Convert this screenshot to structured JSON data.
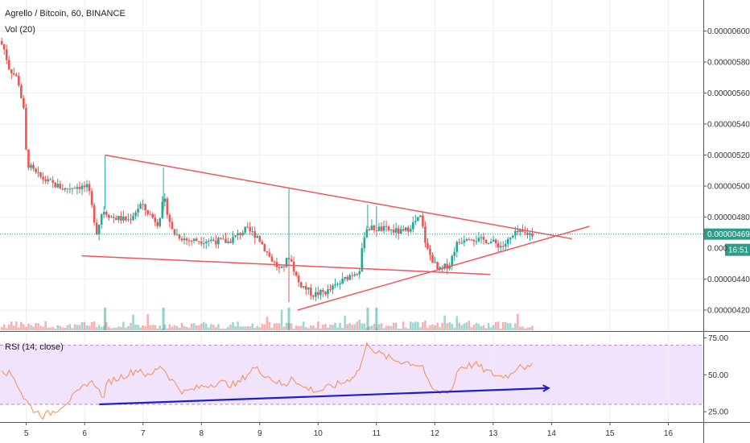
{
  "header": {
    "title": "Agrello / Bitcoin, 60, BINANCE",
    "volume_label": "Vol (20)",
    "rsi_label": "RSI (14, close)"
  },
  "price_axis": {
    "ticks": [
      {
        "value": 6e-06,
        "label": "0.00000600"
      },
      {
        "value": 5.8e-06,
        "label": "0.00000580"
      },
      {
        "value": 5.6e-06,
        "label": "0.00000560"
      },
      {
        "value": 5.4e-06,
        "label": "0.00000540"
      },
      {
        "value": 5.2e-06,
        "label": "0.00000520"
      },
      {
        "value": 5e-06,
        "label": "0.00000500"
      },
      {
        "value": 4.8e-06,
        "label": "0.00000480"
      },
      {
        "value": 4.4e-06,
        "label": "0.00000440"
      },
      {
        "value": 4.2e-06,
        "label": "0.00000420"
      }
    ],
    "partial_label": "0.000",
    "ylim": [
      4.07e-06,
      6.2e-06
    ],
    "current_price": {
      "value": 4.69e-06,
      "label": "0.00000469",
      "countdown": "16:51",
      "color": "#2e9c89"
    }
  },
  "rsi_axis": {
    "ticks": [
      {
        "value": 75,
        "label": "75.00"
      },
      {
        "value": 50,
        "label": "50.00"
      },
      {
        "value": 25,
        "label": "25.00"
      }
    ],
    "ylim": [
      18,
      78
    ],
    "band": [
      30,
      70
    ],
    "band_color": "#f1e3fb",
    "line_color": "#f58d54"
  },
  "time_axis": {
    "ticks": [
      {
        "value": 5,
        "label": "5"
      },
      {
        "value": 6,
        "label": "6"
      },
      {
        "value": 7,
        "label": "7"
      },
      {
        "value": 8,
        "label": "8"
      },
      {
        "value": 9,
        "label": "9"
      },
      {
        "value": 10,
        "label": "10"
      },
      {
        "value": 11,
        "label": "11"
      },
      {
        "value": 12,
        "label": "12"
      },
      {
        "value": 13,
        "label": "13"
      },
      {
        "value": 14,
        "label": "14"
      },
      {
        "value": 15,
        "label": "15"
      },
      {
        "value": 16,
        "label": "16"
      }
    ],
    "xlim": [
      4.55,
      16.6
    ]
  },
  "colors": {
    "up": "#26a69a",
    "down": "#ef5350",
    "trendline": "#f0555d",
    "rsi_trendline": "#1f1fc8",
    "grid": "#eeeeee"
  },
  "chart_data": {
    "type": "candlestick",
    "price_keypoints": [
      [
        4.55,
        5.95e-06
      ],
      [
        4.65,
        5.9e-06
      ],
      [
        4.75,
        5.76e-06
      ],
      [
        4.9,
        5.69e-06
      ],
      [
        5.0,
        5.48e-06
      ],
      [
        5.05,
        5.15e-06
      ],
      [
        5.2,
        5.08e-06
      ],
      [
        5.4,
        5.03e-06
      ],
      [
        5.7,
        4.98e-06
      ],
      [
        5.9,
        5e-06
      ],
      [
        6.1,
        4.99e-06
      ],
      [
        6.25,
        4.7e-06
      ],
      [
        6.35,
        4.85e-06
      ],
      [
        6.5,
        4.8e-06
      ],
      [
        6.8,
        4.78e-06
      ],
      [
        7.0,
        4.88e-06
      ],
      [
        7.3,
        4.76e-06
      ],
      [
        7.4,
        4.92e-06
      ],
      [
        7.55,
        4.7e-06
      ],
      [
        7.8,
        4.65e-06
      ],
      [
        8.2,
        4.65e-06
      ],
      [
        8.5,
        4.64e-06
      ],
      [
        8.8,
        4.72e-06
      ],
      [
        9.0,
        4.68e-06
      ],
      [
        9.2,
        4.55e-06
      ],
      [
        9.4,
        4.45e-06
      ],
      [
        9.55,
        4.55e-06
      ],
      [
        9.7,
        4.38e-06
      ],
      [
        9.95,
        4.3e-06
      ],
      [
        10.2,
        4.32e-06
      ],
      [
        10.4,
        4.37e-06
      ],
      [
        10.6,
        4.43e-06
      ],
      [
        10.75,
        4.46e-06
      ],
      [
        10.85,
        4.73e-06
      ],
      [
        11.2,
        4.72e-06
      ],
      [
        11.5,
        4.7e-06
      ],
      [
        11.8,
        4.8e-06
      ],
      [
        11.9,
        4.6e-06
      ],
      [
        12.1,
        4.45e-06
      ],
      [
        12.3,
        4.5e-06
      ],
      [
        12.4,
        4.62e-06
      ],
      [
        12.6,
        4.68e-06
      ],
      [
        12.8,
        4.65e-06
      ],
      [
        12.95,
        4.65e-06
      ],
      [
        13.2,
        4.61e-06
      ],
      [
        13.45,
        4.7e-06
      ],
      [
        13.7,
        4.69e-06
      ]
    ],
    "spikes": [
      {
        "x": 6.35,
        "high": 5.2e-06
      },
      {
        "x": 7.35,
        "high": 5.12e-06
      },
      {
        "x": 9.5,
        "high": 4.99e-06
      },
      {
        "x": 9.5,
        "low": 4.25e-06
      },
      {
        "x": 10.85,
        "high": 4.88e-06
      },
      {
        "x": 11.0,
        "high": 4.87e-06
      }
    ],
    "rsi_keypoints": [
      [
        4.55,
        55
      ],
      [
        4.8,
        48
      ],
      [
        4.95,
        35
      ],
      [
        5.1,
        27
      ],
      [
        5.3,
        22
      ],
      [
        5.5,
        26
      ],
      [
        5.7,
        32
      ],
      [
        5.9,
        38
      ],
      [
        6.05,
        45
      ],
      [
        6.2,
        44
      ],
      [
        6.3,
        33
      ],
      [
        6.4,
        45
      ],
      [
        6.7,
        50
      ],
      [
        6.95,
        54
      ],
      [
        7.1,
        48
      ],
      [
        7.3,
        57
      ],
      [
        7.5,
        46
      ],
      [
        7.7,
        38
      ],
      [
        8.0,
        42
      ],
      [
        8.3,
        45
      ],
      [
        8.6,
        43
      ],
      [
        8.9,
        55
      ],
      [
        9.1,
        50
      ],
      [
        9.3,
        45
      ],
      [
        9.45,
        42
      ],
      [
        9.55,
        50
      ],
      [
        9.7,
        42
      ],
      [
        10.0,
        39
      ],
      [
        10.3,
        43
      ],
      [
        10.5,
        46
      ],
      [
        10.7,
        53
      ],
      [
        10.85,
        72
      ],
      [
        11.0,
        65
      ],
      [
        11.3,
        60
      ],
      [
        11.6,
        58
      ],
      [
        11.8,
        56
      ],
      [
        11.9,
        42
      ],
      [
        12.05,
        38
      ],
      [
        12.3,
        40
      ],
      [
        12.4,
        55
      ],
      [
        12.7,
        57
      ],
      [
        12.9,
        52
      ],
      [
        13.1,
        49
      ],
      [
        13.3,
        50
      ],
      [
        13.45,
        58
      ],
      [
        13.6,
        54
      ],
      [
        13.7,
        56
      ]
    ],
    "trendlines_price": [
      {
        "name": "upper-resistance",
        "from": [
          6.35,
          5.2e-06
        ],
        "to": [
          14.35,
          4.66e-06
        ]
      },
      {
        "name": "lower-support",
        "from": [
          5.95,
          4.55e-06
        ],
        "to": [
          12.95,
          4.43e-06
        ]
      },
      {
        "name": "rising-support",
        "from": [
          9.65,
          4.2e-06
        ],
        "to": [
          14.65,
          4.74e-06
        ]
      }
    ],
    "rsi_trendline": {
      "from": [
        6.25,
        30
      ],
      "to": [
        13.95,
        41
      ]
    }
  }
}
